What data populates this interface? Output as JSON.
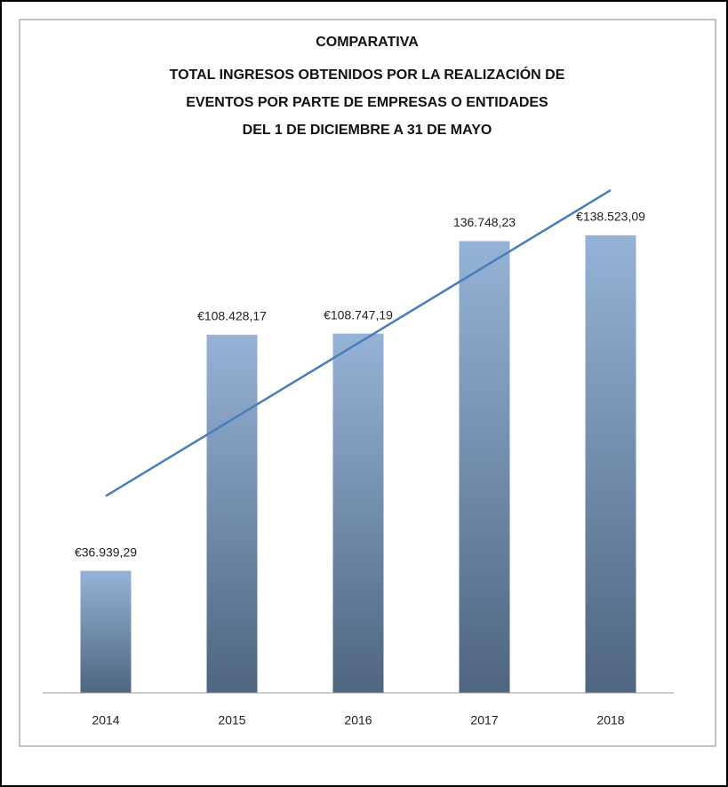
{
  "chart_data": {
    "type": "bar",
    "title": [
      "COMPARATIVA",
      "TOTAL INGRESOS OBTENIDOS POR LA REALIZACIÓN DE",
      "EVENTOS POR PARTE DE EMPRESAS O ENTIDADES",
      "DEL 1 DE DICIEMBRE A 31 DE MAYO"
    ],
    "categories": [
      "2014",
      "2015",
      "2016",
      "2017",
      "2018"
    ],
    "values": [
      36939.29,
      108428.17,
      108747.19,
      136748.23,
      138523.09
    ],
    "value_labels": [
      "€36.939,29",
      "€108.428,17",
      "€108.747,19",
      "136.748,23",
      "€138.523,09"
    ],
    "color": [
      "#95b3d7",
      "#4f6580"
    ],
    "trendline": {
      "type": "linear",
      "color": "#4a7ebb"
    },
    "ylim": [
      0,
      160000
    ]
  }
}
